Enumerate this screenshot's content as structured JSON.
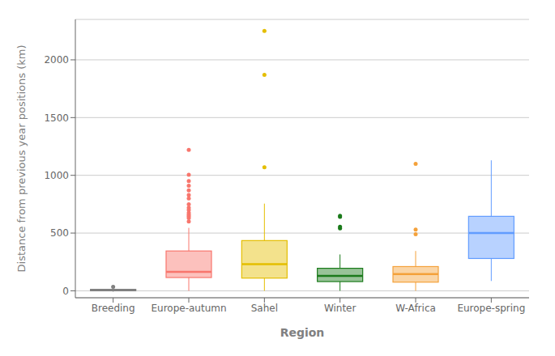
{
  "chart_data": {
    "type": "box",
    "xlabel": "Region",
    "ylabel": "Distance from previous year positions (km)",
    "categories": [
      "Breeding",
      "Europe-autumn",
      "Sahel",
      "Winter",
      "W-Africa",
      "Europe-spring"
    ],
    "colors": [
      "#808080",
      "#F8766D",
      "#E4BE00",
      "#1A7A1A",
      "#F4A13A",
      "#619CFF"
    ],
    "boxes": [
      {
        "q1": 0,
        "median": 5,
        "q3": 13,
        "whisker_low": -8,
        "whisker_high": 22,
        "outliers": [
          35
        ]
      },
      {
        "q1": 115,
        "median": 165,
        "q3": 345,
        "whisker_low": 0,
        "whisker_high": 545,
        "outliers": [
          600,
          630,
          645,
          660,
          675,
          700,
          720,
          750,
          800,
          830,
          870,
          910,
          950,
          1005,
          1220
        ]
      },
      {
        "q1": 110,
        "median": 230,
        "q3": 435,
        "whisker_low": 0,
        "whisker_high": 755,
        "outliers": [
          1070,
          1870,
          2250
        ]
      },
      {
        "q1": 80,
        "median": 130,
        "q3": 195,
        "whisker_low": 0,
        "whisker_high": 315,
        "outliers": [
          540,
          555,
          640,
          650
        ]
      },
      {
        "q1": 75,
        "median": 145,
        "q3": 210,
        "whisker_low": 0,
        "whisker_high": 345,
        "outliers": [
          490,
          530,
          1100
        ]
      },
      {
        "q1": 280,
        "median": 500,
        "q3": 645,
        "whisker_low": 85,
        "whisker_high": 1130,
        "outliers": []
      }
    ],
    "ylim": [
      -60,
      2350
    ],
    "yticks": [
      0,
      500,
      1000,
      1500,
      2000
    ],
    "grid": true
  }
}
